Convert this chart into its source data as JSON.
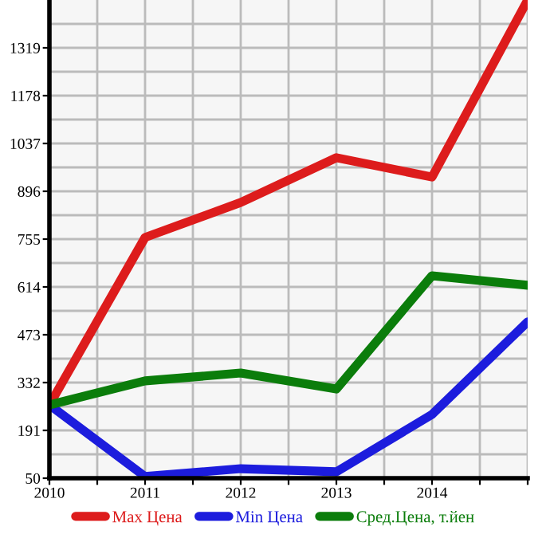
{
  "chart_data": {
    "type": "line",
    "x": [
      2010,
      2011,
      2012,
      2013,
      2014,
      2015
    ],
    "series": [
      {
        "name": "Max Цена",
        "color": "#dd1c1c",
        "values": [
          266,
          760,
          863,
          995,
          938,
          1460
        ]
      },
      {
        "name": "Min Цена",
        "color": "#1c1cdd",
        "values": [
          266,
          55,
          78,
          69,
          238,
          511
        ]
      },
      {
        "name": "Сред.Цена, т.йен",
        "color": "#0b7d0b",
        "values": [
          266,
          337,
          360,
          313,
          647,
          619
        ]
      }
    ],
    "xlim": [
      2010,
      2015
    ],
    "xticks": [
      2010,
      {
        "value": 2010.5,
        "label": null
      },
      2011,
      {
        "value": 2011.5,
        "label": null
      },
      2012,
      {
        "value": 2012.5,
        "label": null
      },
      2013,
      {
        "value": 2013.5,
        "label": null
      },
      2014,
      {
        "value": 2014.5,
        "label": null
      },
      {
        "value": 2015,
        "label": null
      }
    ],
    "ylim": [
      50,
      1460
    ],
    "yticks": [
      50,
      {
        "value": 120.5,
        "label": null
      },
      191,
      {
        "value": 261.5,
        "label": null
      },
      332,
      {
        "value": 402.5,
        "label": null
      },
      473,
      {
        "value": 543.5,
        "label": null
      },
      614,
      {
        "value": 684.5,
        "label": null
      },
      755,
      {
        "value": 825.5,
        "label": null
      },
      896,
      {
        "value": 966.5,
        "label": null
      },
      1037,
      {
        "value": 1107.5,
        "label": null
      },
      1178,
      {
        "value": 1248.5,
        "label": null
      },
      1319,
      {
        "value": 1389.5,
        "label": null
      }
    ],
    "grid": true,
    "legend": "bottom",
    "marker": "none",
    "line_style": "solid"
  }
}
